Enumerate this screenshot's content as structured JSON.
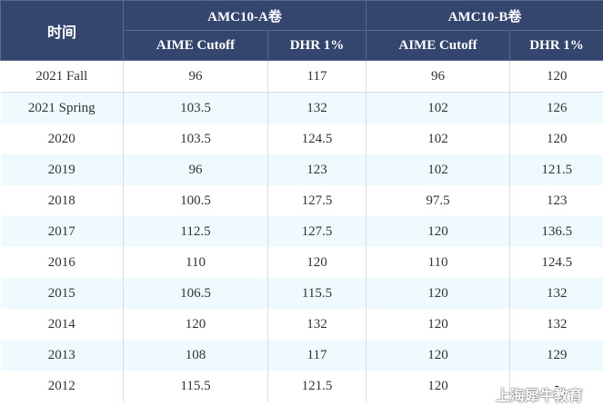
{
  "header": {
    "time_label": "时间",
    "group_a": "AMC10-A卷",
    "group_b": "AMC10-B卷",
    "sub_a_cutoff": "AIME Cutoff",
    "sub_a_dhr": "DHR 1%",
    "sub_b_cutoff": "AIME Cutoff",
    "sub_b_dhr": "DHR 1%"
  },
  "rows": [
    {
      "time": "2021 Fall",
      "a_cutoff": "96",
      "a_dhr": "117",
      "b_cutoff": "96",
      "b_dhr": "120"
    },
    {
      "time": "2021 Spring",
      "a_cutoff": "103.5",
      "a_dhr": "132",
      "b_cutoff": "102",
      "b_dhr": "126"
    },
    {
      "time": "2020",
      "a_cutoff": "103.5",
      "a_dhr": "124.5",
      "b_cutoff": "102",
      "b_dhr": "120"
    },
    {
      "time": "2019",
      "a_cutoff": "96",
      "a_dhr": "123",
      "b_cutoff": "102",
      "b_dhr": "121.5"
    },
    {
      "time": "2018",
      "a_cutoff": "100.5",
      "a_dhr": "127.5",
      "b_cutoff": "97.5",
      "b_dhr": "123"
    },
    {
      "time": "2017",
      "a_cutoff": "112.5",
      "a_dhr": "127.5",
      "b_cutoff": "120",
      "b_dhr": "136.5"
    },
    {
      "time": "2016",
      "a_cutoff": "110",
      "a_dhr": "120",
      "b_cutoff": "110",
      "b_dhr": "124.5"
    },
    {
      "time": "2015",
      "a_cutoff": "106.5",
      "a_dhr": "115.5",
      "b_cutoff": "120",
      "b_dhr": "132"
    },
    {
      "time": "2014",
      "a_cutoff": "120",
      "a_dhr": "132",
      "b_cutoff": "120",
      "b_dhr": "132"
    },
    {
      "time": "2013",
      "a_cutoff": "108",
      "a_dhr": "117",
      "b_cutoff": "120",
      "b_dhr": "129"
    },
    {
      "time": "2012",
      "a_cutoff": "115.5",
      "a_dhr": "121.5",
      "b_cutoff": "120",
      "b_dhr": "-"
    }
  ],
  "watermark": {
    "text": "上海犀牛教育",
    "icon": "wechat-icon"
  },
  "colors": {
    "header_bg": "#34456e",
    "header_text": "#ffffff",
    "row_alt_bg": "#eefafd",
    "row_bg": "#ffffff",
    "cell_text": "#333333"
  }
}
